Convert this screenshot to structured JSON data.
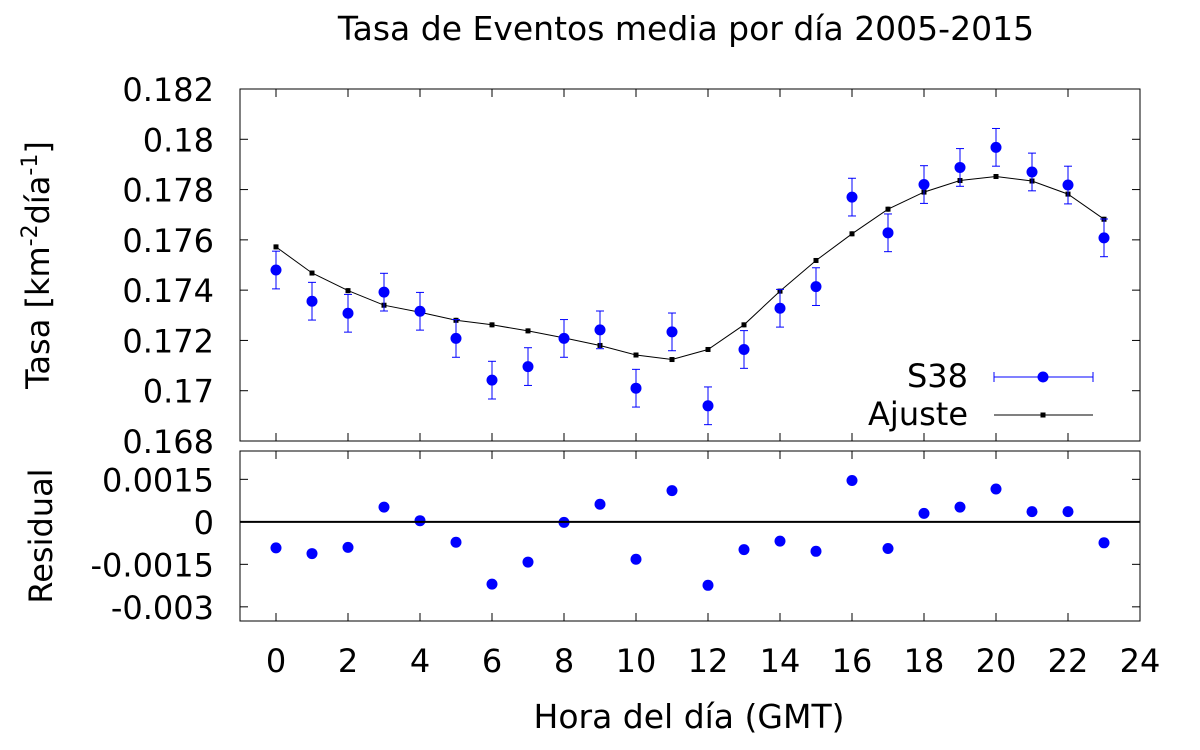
{
  "chart_data": {
    "type": "scatter",
    "title": "Tasa de Eventos media por día  2005-2015",
    "xlabel": "Hora del día (GMT)",
    "xlim": [
      -1,
      24
    ],
    "xticks": [
      0,
      2,
      4,
      6,
      8,
      10,
      12,
      14,
      16,
      18,
      20,
      22,
      24
    ],
    "xtick_labels": [
      "0",
      "2",
      "4",
      "6",
      "8",
      "10",
      "12",
      "14",
      "16",
      "18",
      "20",
      "22",
      "24"
    ],
    "x": [
      0,
      1,
      2,
      3,
      4,
      5,
      6,
      7,
      8,
      9,
      10,
      11,
      12,
      13,
      14,
      15,
      16,
      17,
      18,
      19,
      20,
      21,
      22,
      23
    ],
    "upper": {
      "ylabel_main": "Tasa [km",
      "ylabel_sup1": "-2",
      "ylabel_mid": "día",
      "ylabel_sup2": "-1",
      "ylabel_end": "]",
      "ylim": [
        0.168,
        0.182
      ],
      "yticks": [
        0.168,
        0.17,
        0.172,
        0.174,
        0.176,
        0.178,
        0.18,
        0.182
      ],
      "ytick_labels": [
        "0.168",
        "0.17",
        "0.172",
        "0.174",
        "0.176",
        "0.178",
        "0.18",
        "0.182"
      ],
      "legend_position": "bottom-right",
      "series": [
        {
          "name": "S38",
          "color": "#0000ff",
          "style": "points-with-errorbars",
          "values": [
            0.1748,
            0.17356,
            0.17308,
            0.17392,
            0.17316,
            0.17208,
            0.17042,
            0.17096,
            0.17208,
            0.17242,
            0.1701,
            0.17234,
            0.1694,
            0.17164,
            0.17328,
            0.17414,
            0.1777,
            0.17628,
            0.1782,
            0.17888,
            0.17968,
            0.1787,
            0.17818,
            0.17608
          ],
          "errors": [
            0.00075,
            0.00075,
            0.00075,
            0.00075,
            0.00075,
            0.00075,
            0.00075,
            0.00075,
            0.00075,
            0.00075,
            0.00075,
            0.00075,
            0.00075,
            0.00075,
            0.00075,
            0.00075,
            0.00075,
            0.00075,
            0.00075,
            0.00075,
            0.00075,
            0.00075,
            0.00075,
            0.00075
          ]
        },
        {
          "name": "Ajuste",
          "color": "#000000",
          "style": "line-with-small-points",
          "values": [
            0.17572,
            0.17468,
            0.17398,
            0.1734,
            0.17312,
            0.1728,
            0.17262,
            0.17238,
            0.1721,
            0.1718,
            0.17142,
            0.17124,
            0.17164,
            0.17262,
            0.17396,
            0.17518,
            0.17624,
            0.17722,
            0.1779,
            0.17836,
            0.17852,
            0.17834,
            0.17782,
            0.17682
          ],
          "errors": [
            0.0001,
            0.0001,
            0.0001,
            0.0001,
            0.0001,
            0.0001,
            0.0001,
            0.0001,
            0.0001,
            0.0001,
            0.0001,
            0.0001,
            0.0001,
            0.0001,
            0.0001,
            0.0001,
            0.0001,
            0.0001,
            0.0001,
            0.0001,
            0.0001,
            0.0001,
            0.0001,
            0.0001
          ]
        }
      ]
    },
    "lower": {
      "ylabel": "Residual",
      "ylim": [
        -0.0035,
        0.0025
      ],
      "yticks": [
        -0.003,
        -0.0015,
        0,
        0.0015
      ],
      "ytick_labels": [
        "-0.003",
        "-0.0015",
        "0",
        "0.0015"
      ],
      "zero_line": true,
      "series": [
        {
          "color": "#0000ff",
          "values": [
            -0.00092,
            -0.00112,
            -0.0009,
            0.00052,
            4e-05,
            -0.00072,
            -0.0022,
            -0.00142,
            -2e-05,
            0.00062,
            -0.00132,
            0.0011,
            -0.00224,
            -0.00098,
            -0.00068,
            -0.00104,
            0.00146,
            -0.00094,
            0.0003,
            0.00052,
            0.00116,
            0.00036,
            0.00036,
            -0.00074
          ]
        }
      ]
    }
  }
}
